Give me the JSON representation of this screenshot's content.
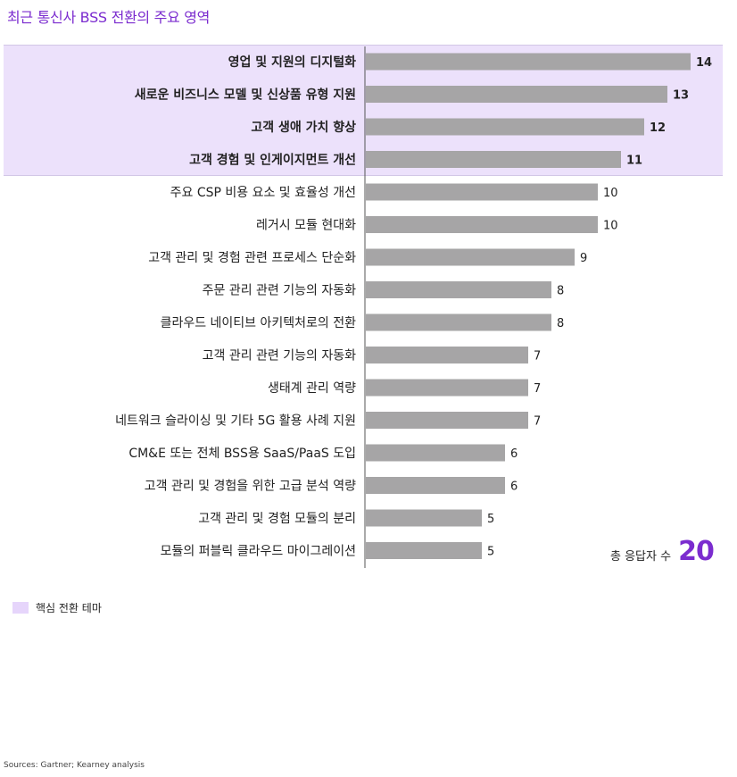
{
  "title": "최근 통신사 BSS 전환의 주요 영역",
  "chart_data": {
    "type": "bar",
    "orientation": "horizontal",
    "categories": [
      "영업 및 지원의 디지털화",
      "새로운 비즈니스 모델 및 신상품 유형 지원",
      "고객 생애 가치 향상",
      "고객 경험 및 인게이지먼트 개선",
      "주요 CSP 비용 요소 및 효율성 개선",
      "레거시 모듈 현대화",
      "고객 관리 및 경험 관련 프로세스 단순화",
      "주문 관리 관련 기능의 자동화",
      "클라우드 네이티브 아키텍처로의 전환",
      "고객 관리 관련 기능의 자동화",
      "생태계 관리 역량",
      "네트워크 슬라이싱 및 기타 5G 활용 사례 지원",
      "CM&E 또는 전체 BSS용 SaaS/PaaS 도입",
      "고객 관리 및 경험을 위한 고급 분석 역량",
      "고객 관리 및 경험 모듈의 분리",
      "모듈의 퍼블릭 클라우드 마이그레이션"
    ],
    "values": [
      14,
      13,
      12,
      11,
      10,
      10,
      9,
      8,
      8,
      7,
      7,
      7,
      6,
      6,
      5,
      5
    ],
    "highlighted": [
      true,
      true,
      true,
      true,
      false,
      false,
      false,
      false,
      false,
      false,
      false,
      false,
      false,
      false,
      false,
      false
    ],
    "xlim": [
      0,
      14
    ],
    "grid": false,
    "data_labels": true,
    "bar_color": "#a6a5a6",
    "highlight_color": "#ece1fb"
  },
  "total": {
    "label": "총 응답자 수",
    "value": "20"
  },
  "legend": {
    "label": "핵심 전환 테마",
    "color": "#e6d5fb"
  },
  "source": "Sources: Gartner; Kearney analysis"
}
